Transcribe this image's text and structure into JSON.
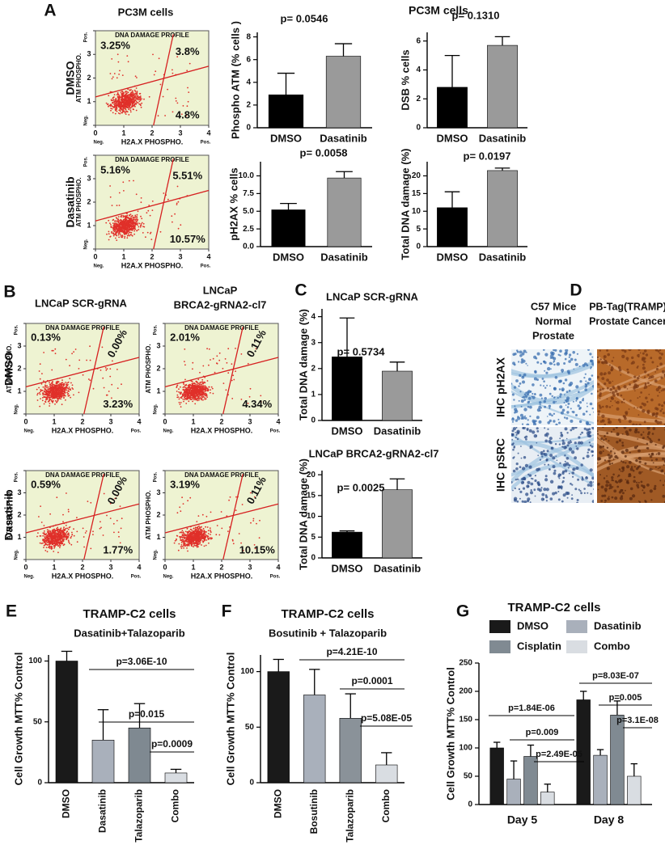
{
  "panel_labels": [
    "A",
    "B",
    "C",
    "D",
    "E",
    "F",
    "G"
  ],
  "flow_axes": {
    "title": "DNA DAMAGE PROFILE",
    "xlabel": "H2A.X PHOSPHO.",
    "ylabel": "ATM PHOSPHO.",
    "xticks": [
      0,
      1,
      2,
      3,
      4
    ],
    "yticks": [
      0,
      1,
      2,
      3,
      4
    ],
    "neg": "Neg.",
    "pos": "Pos."
  },
  "panel_a": {
    "title": "PC3M cells",
    "bar_title": "PC3M cells",
    "rows": [
      "DMSO",
      "Dasatinib"
    ]
  },
  "panel_b": {
    "titles": [
      "LNCaP SCR-gRNA",
      "LNCaP",
      "BRCA2-gRNA2-cl7"
    ],
    "rows": [
      "DMSO",
      "Dasatinib"
    ]
  },
  "flow_plots": [
    {
      "upper_left": "3.25%",
      "upper_right": "3.8%",
      "lower_right": "4.8%"
    },
    {
      "upper_left": "5.16%",
      "upper_right": "5.51%",
      "lower_right": "10.57%"
    },
    {
      "upper_left": "0.13%",
      "upper_right": "0.00%",
      "lower_right": "3.23%"
    },
    {
      "upper_left": "2.01%",
      "upper_right": "0.11%",
      "lower_right": "4.34%"
    },
    {
      "upper_left": "0.59%",
      "upper_right": "0.00%",
      "lower_right": "1.77%"
    },
    {
      "upper_left": "3.19%",
      "upper_right": "0.11%",
      "lower_right": "10.15%"
    }
  ],
  "panel_d": {
    "col_titles": [
      [
        "C57 Mice",
        "Normal",
        "Prostate"
      ],
      [
        "PB-Tag(TRAMP)",
        "Prostate Cancer"
      ]
    ],
    "rows": [
      "IHC pH2AX",
      "IHC pSRC"
    ]
  },
  "chart_data": [
    {
      "type": "bar",
      "annotation": "p= 0.0546",
      "ylabel": "Phospho ATM (% cells )",
      "categories": [
        "DMSO",
        "Dasatinib"
      ],
      "values": [
        2.9,
        6.3
      ],
      "errors": [
        1.9,
        1.1
      ],
      "colors": [
        "#000000",
        "#9a9a9a"
      ],
      "ylim": [
        0,
        8.4
      ],
      "yticks": [
        0,
        2,
        4,
        6,
        8
      ]
    },
    {
      "type": "bar",
      "annotation": "p=  0.1310",
      "ylabel": "DSB  % cells",
      "categories": [
        "DMSO",
        "Dasatinib"
      ],
      "values": [
        2.8,
        5.7
      ],
      "errors": [
        2.2,
        0.6
      ],
      "colors": [
        "#000000",
        "#9a9a9a"
      ],
      "ylim": [
        0,
        6.6
      ],
      "yticks": [
        0,
        2,
        4,
        6
      ]
    },
    {
      "type": "bar",
      "annotation": "p= 0.0058",
      "ylabel": "pH2AX % cells",
      "categories": [
        "DMSO",
        "Dasatinib"
      ],
      "values": [
        5.2,
        9.7
      ],
      "errors": [
        0.9,
        0.9
      ],
      "colors": [
        "#000000",
        "#9a9a9a"
      ],
      "ylim": [
        0,
        12
      ],
      "yticks": [
        {
          "value": 0,
          "label": "0.0"
        },
        2.5,
        {
          "value": 5,
          "label": "5.0"
        },
        7.5,
        {
          "value": 10,
          "label": "10.0"
        }
      ]
    },
    {
      "type": "bar",
      "annotation": "p= 0.0197",
      "ylabel": "Total DNA damage (%)",
      "categories": [
        "DMSO",
        "Dasatinib"
      ],
      "values": [
        11,
        21.5
      ],
      "errors": [
        4.5,
        0.7
      ],
      "colors": [
        "#000000",
        "#9a9a9a"
      ],
      "ylim": [
        0,
        24
      ],
      "yticks": [
        0,
        5,
        10,
        15,
        20
      ]
    },
    {
      "type": "bar",
      "title": "LNCaP SCR-gRNA",
      "annotation": "p= 0.5734",
      "ylabel": "Total DNA damage (%)",
      "categories": [
        "DMSO",
        "Dasatinib"
      ],
      "values": [
        2.45,
        1.9
      ],
      "errors": [
        1.5,
        0.35
      ],
      "colors": [
        "#000000",
        "#9a9a9a"
      ],
      "ylim": [
        0,
        4.3
      ],
      "yticks": [
        0,
        1,
        2,
        3,
        4
      ]
    },
    {
      "type": "bar",
      "title": "LNCaP BRCA2-gRNA2-cl7",
      "annotation": "p= 0.0025",
      "ylabel": "Total DNA damage (%)",
      "categories": [
        "DMSO",
        "Dasatinib"
      ],
      "values": [
        6.2,
        16.4
      ],
      "errors": [
        0.3,
        2.6
      ],
      "colors": [
        "#000000",
        "#9a9a9a"
      ],
      "ylim": [
        0,
        21
      ],
      "yticks": [
        0,
        5,
        10,
        15,
        20
      ]
    },
    {
      "type": "bar",
      "title": "TRAMP-C2 cells",
      "subtitle": "Dasatinib+Talazoparib",
      "annotations": [
        "p=3.06E-10",
        "p=0.015",
        "p=0.0009"
      ],
      "ylabel": "Cell Growth MTT% Control",
      "categories": [
        "DMSO",
        "Dasatinib",
        "Talazoparib",
        "Combo"
      ],
      "values": [
        100,
        35,
        45,
        8
      ],
      "errors": [
        8,
        25,
        20,
        3
      ],
      "colors": [
        "#1a1a1a",
        "#a9b0bb",
        "#7f8991",
        "#d9dde2"
      ],
      "ylim": [
        0,
        105
      ],
      "yticks": [
        0,
        50,
        100
      ]
    },
    {
      "type": "bar",
      "title": "TRAMP-C2 cells",
      "subtitle": "Bosutinib + Talazoparib",
      "annotations": [
        "p=4.21E-10",
        "p=0.0001",
        "p=5.08E-05"
      ],
      "ylabel": "Cell Growth MTT% Control",
      "categories": [
        "DMSO",
        "Bosutinib",
        "Talazoparib",
        "Combo"
      ],
      "values": [
        100,
        79,
        58,
        16
      ],
      "errors": [
        11,
        23,
        22,
        11
      ],
      "colors": [
        "#1a1a1a",
        "#a9b0bb",
        "#8a9299",
        "#d9dde2"
      ],
      "ylim": [
        0,
        115
      ],
      "yticks": [
        0,
        50,
        100
      ]
    },
    {
      "type": "bar",
      "title": "TRAMP-C2 cells",
      "annotations": [
        "p=1.84E-06",
        "p=0.009",
        "p=2.49E-05",
        "p=8.03E-07",
        "p=0.005",
        "p=3.1E-08"
      ],
      "ylabel": "Cell Growth MTT% Control",
      "categories": [
        "Day 5",
        "Day 8"
      ],
      "series": [
        {
          "name": "DMSO",
          "color": "#1a1a1a",
          "values": [
            100,
            185
          ],
          "errors": [
            10,
            15
          ]
        },
        {
          "name": "Dasatinib",
          "color": "#a9b0bb",
          "values": [
            45,
            87
          ],
          "errors": [
            32,
            10
          ]
        },
        {
          "name": "Cisplatin",
          "color": "#808a92",
          "values": [
            85,
            158
          ],
          "errors": [
            20,
            25
          ]
        },
        {
          "name": "Combo",
          "color": "#d9dde2",
          "values": [
            22,
            50
          ],
          "errors": [
            14,
            22
          ]
        }
      ],
      "ylim": [
        0,
        250
      ],
      "yticks": [
        0,
        50,
        100,
        150,
        200,
        250
      ]
    }
  ]
}
